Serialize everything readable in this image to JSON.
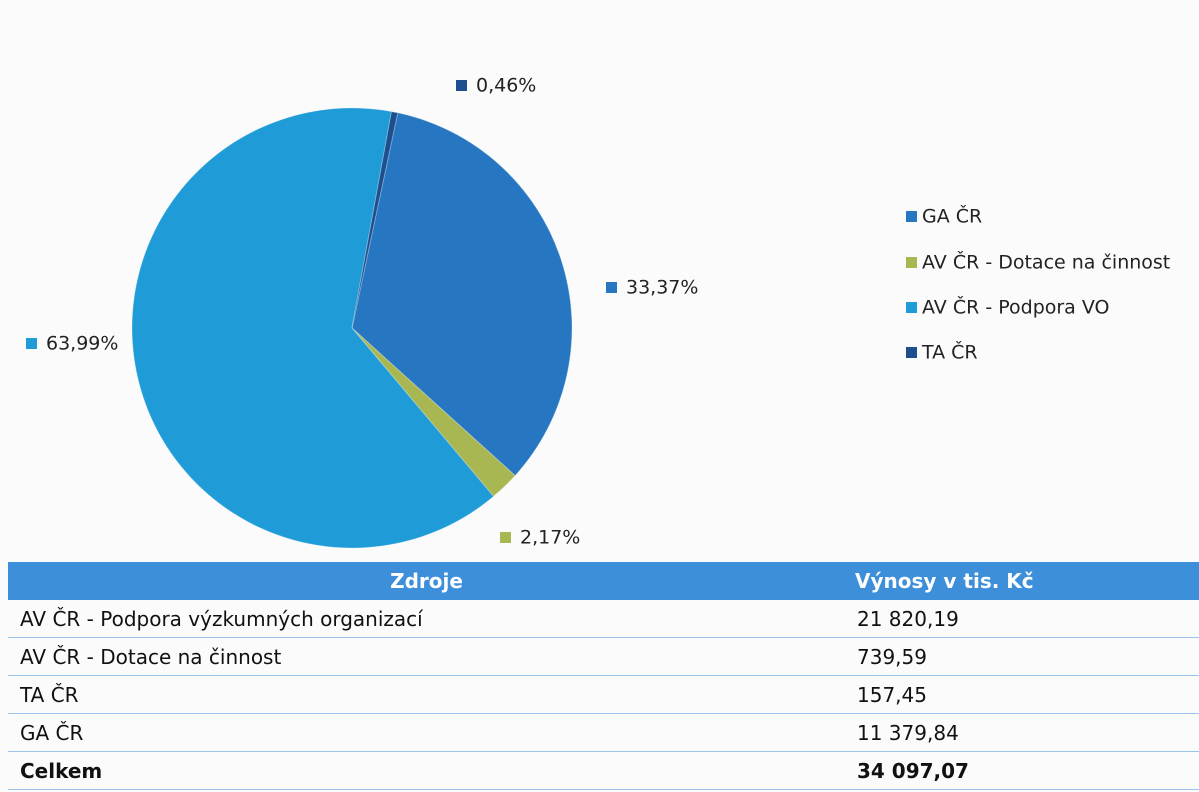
{
  "chart_data": {
    "type": "pie",
    "series": [
      {
        "name": "GA ČR",
        "color": "#2676c2",
        "values": [
          33.37
        ],
        "value_labels": [
          "33,37%"
        ]
      },
      {
        "name": "AV ČR - Dotace na činnost",
        "color": "#a9b752",
        "values": [
          2.17
        ],
        "value_labels": [
          "2,17%"
        ]
      },
      {
        "name": "AV ČR - Podpora VO",
        "color": "#1f9bd7",
        "values": [
          63.99
        ],
        "value_labels": [
          "63,99%"
        ]
      },
      {
        "name": "TA ČR",
        "color": "#1d4f8e",
        "values": [
          0.46
        ],
        "value_labels": [
          "0,46%"
        ]
      }
    ],
    "legend": "right"
  },
  "table": {
    "header": [
      "Zdroje",
      "Výnosy v tis. Kč"
    ],
    "rows": [
      [
        "AV ČR - Podpora výzkumných organizací",
        "21 820,19"
      ],
      [
        "AV ČR - Dotace na činnost",
        "739,59"
      ],
      [
        "TA ČR",
        "157,45"
      ],
      [
        "GA ČR",
        "11 379,84"
      ],
      [
        "Celkem",
        "34 097,07"
      ]
    ]
  }
}
